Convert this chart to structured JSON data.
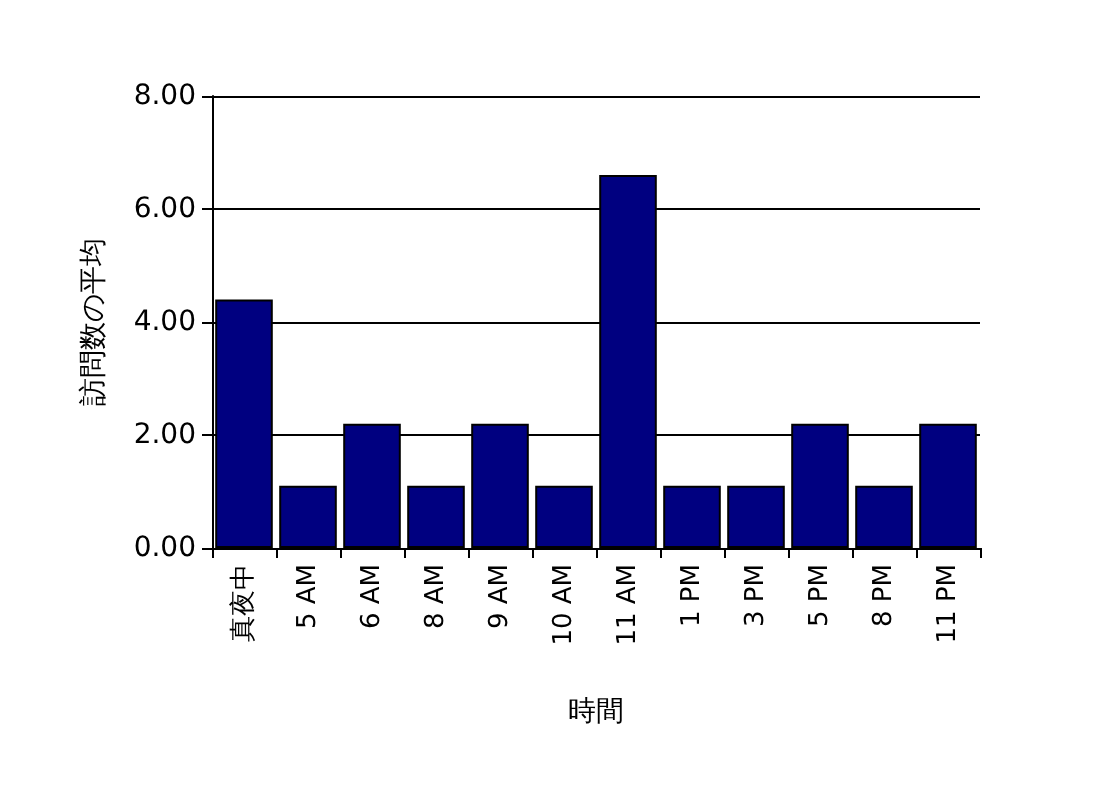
{
  "chart_data": {
    "type": "bar",
    "xlabel": "時間",
    "ylabel": "訪問数の平均",
    "categories": [
      "真夜中",
      "5 AM",
      "6 AM",
      "8 AM",
      "9 AM",
      "10 AM",
      "11 AM",
      "1 PM",
      "3 PM",
      "5 PM",
      "8 PM",
      "11 PM"
    ],
    "values": [
      4.4,
      1.1,
      2.2,
      1.1,
      2.2,
      1.1,
      6.6,
      1.1,
      1.1,
      2.2,
      1.1,
      2.2
    ],
    "color": "#000080",
    "ylim": [
      0,
      8
    ],
    "yticks": [
      {
        "value": 0,
        "label": "0.00"
      },
      {
        "value": 2,
        "label": "2.00"
      },
      {
        "value": 4,
        "label": "4.00"
      },
      {
        "value": 6,
        "label": "6.00"
      },
      {
        "value": 8,
        "label": "8.00"
      }
    ],
    "grid": "y"
  }
}
